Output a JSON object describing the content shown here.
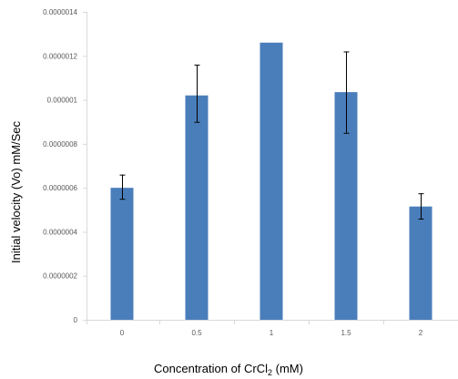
{
  "chart_data": {
    "type": "bar",
    "categories": [
      "0",
      "0.5",
      "1",
      "1.5",
      "2"
    ],
    "values": [
      6e-07,
      1.02e-06,
      1.26e-06,
      1.035e-06,
      5.15e-07
    ],
    "error_upper": [
      6.6e-07,
      1.16e-06,
      1.26e-06,
      1.22e-06,
      5.75e-07
    ],
    "error_lower": [
      5.5e-07,
      9e-07,
      1.26e-06,
      8.5e-07,
      4.6e-07
    ],
    "ylim": [
      0,
      1.4e-06
    ],
    "y_ticks": [
      {
        "value": 0,
        "label": "0"
      },
      {
        "value": 2e-07,
        "label": "0.0000002"
      },
      {
        "value": 4e-07,
        "label": "0.0000004"
      },
      {
        "value": 6e-07,
        "label": "0.0000006"
      },
      {
        "value": 8e-07,
        "label": "0.0000008"
      },
      {
        "value": 1e-06,
        "label": "0.000001"
      },
      {
        "value": 1.2e-06,
        "label": "0.0000012"
      },
      {
        "value": 1.4e-06,
        "label": "0.0000014"
      }
    ],
    "ylabel": "Initial velocity (Vo) mM/Sec",
    "xlabel": {
      "prefix": "Concentration of CrCl",
      "subscript": "2",
      "suffix": " (mM)"
    },
    "grid": false,
    "legend": "none",
    "bar_color": "#4a7ebb"
  }
}
